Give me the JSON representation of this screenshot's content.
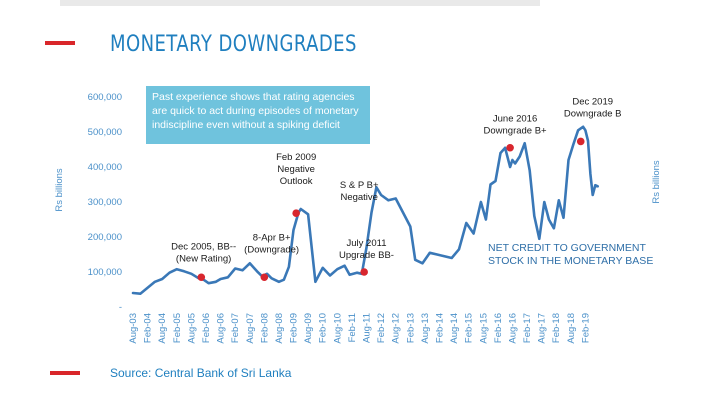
{
  "title": "MONETARY DOWNGRADES",
  "note": [
    "Past experience shows that rating agencies",
    "are quick to act during episodes of monetary",
    "indiscipline even without a spiking deficit"
  ],
  "source": "Source: Central Bank of Sri Lanka",
  "colors": {
    "line": "#3a78b7",
    "marker": "#d8262e",
    "axis_text": "#4a90c9",
    "accent_red": "#d9262a",
    "title": "#1f7fbf",
    "note_bg": "#6fc3dd"
  },
  "chart_data": {
    "type": "line",
    "ylabel_left": "Rs billions",
    "ylabel_right": "Rs billions",
    "ylim": [
      0,
      600000
    ],
    "yticks": [
      "600,000",
      "500,000",
      "400,000",
      "300,000",
      "200,000",
      "100,000",
      "-"
    ],
    "ytick_values": [
      600000,
      500000,
      400000,
      300000,
      200000,
      100000,
      0
    ],
    "xticks": [
      "Aug-03",
      "Feb-04",
      "Aug-04",
      "Feb-05",
      "Aug-05",
      "Feb-06",
      "Aug-06",
      "Feb-07",
      "Aug-07",
      "Feb-08",
      "Aug-08",
      "Feb-09",
      "Aug-09",
      "Feb-10",
      "Aug-10",
      "Feb-11",
      "Aug-11",
      "Feb-12",
      "Aug-12",
      "Feb-13",
      "Aug-13",
      "Feb-14",
      "Aug-14",
      "Feb-15",
      "Aug-15",
      "Feb-16",
      "Aug-16",
      "Feb-17",
      "Aug-17",
      "Feb-18",
      "Aug-18",
      "Feb-19"
    ],
    "series": [
      {
        "name": "NET CREDIT TO GOVERNMENT STOCK IN THE MONETARY BASE",
        "x": [
          2003.58,
          2003.83,
          2004.08,
          2004.33,
          2004.58,
          2004.83,
          2005.08,
          2005.33,
          2005.58,
          2005.83,
          2006.0,
          2006.17,
          2006.42,
          2006.58,
          2006.83,
          2007.08,
          2007.33,
          2007.58,
          2007.83,
          2008.0,
          2008.17,
          2008.33,
          2008.58,
          2008.75,
          2008.92,
          2009.08,
          2009.25,
          2009.33,
          2009.58,
          2009.83,
          2010.08,
          2010.33,
          2010.58,
          2010.83,
          2011.0,
          2011.25,
          2011.42,
          2011.58,
          2011.75,
          2011.92,
          2012.08,
          2012.33,
          2012.58,
          2012.83,
          2013.08,
          2013.25,
          2013.5,
          2013.75,
          2014.0,
          2014.25,
          2014.5,
          2014.75,
          2015.0,
          2015.25,
          2015.5,
          2015.67,
          2015.83,
          2016.0,
          2016.17,
          2016.33,
          2016.5,
          2016.58,
          2016.67,
          2016.83,
          2017.0,
          2017.17,
          2017.33,
          2017.5,
          2017.67,
          2017.83,
          2018.0,
          2018.17,
          2018.33,
          2018.5,
          2018.67,
          2018.83,
          2019.0,
          2019.08,
          2019.17,
          2019.25,
          2019.33,
          2019.42,
          2019.5
        ],
        "values": [
          40000,
          38000,
          55000,
          72000,
          80000,
          98000,
          108000,
          102000,
          95000,
          82000,
          78000,
          68000,
          72000,
          80000,
          85000,
          110000,
          105000,
          125000,
          102000,
          88000,
          95000,
          82000,
          72000,
          78000,
          115000,
          220000,
          270000,
          280000,
          265000,
          72000,
          112000,
          90000,
          108000,
          118000,
          92000,
          98000,
          95000,
          170000,
          270000,
          342000,
          320000,
          305000,
          310000,
          270000,
          230000,
          135000,
          125000,
          155000,
          150000,
          145000,
          140000,
          165000,
          240000,
          210000,
          300000,
          250000,
          350000,
          360000,
          440000,
          455000,
          400000,
          420000,
          410000,
          430000,
          468000,
          390000,
          260000,
          195000,
          300000,
          250000,
          225000,
          305000,
          255000,
          420000,
          465000,
          505000,
          515000,
          505000,
          475000,
          380000,
          320000,
          348000,
          345000
        ]
      }
    ],
    "markers": [
      {
        "x": 2005.92,
        "y": 85000
      },
      {
        "x": 2008.08,
        "y": 85000
      },
      {
        "x": 2009.17,
        "y": 268000
      },
      {
        "x": 2011.5,
        "y": 100000
      },
      {
        "x": 2016.5,
        "y": 455000
      },
      {
        "x": 2018.92,
        "y": 473000
      }
    ],
    "annotations": [
      {
        "lines": [
          "Dec 2005, BB--",
          "(New Rating)"
        ],
        "x": 2006.0,
        "y": 165000
      },
      {
        "lines": [
          "8-Apr B+",
          "(Downgrade)"
        ],
        "x": 2008.33,
        "y": 190000
      },
      {
        "lines": [
          "Feb 2009",
          "Negative",
          "Outlook"
        ],
        "x": 2009.17,
        "y": 420000
      },
      {
        "lines": [
          "S & P B+",
          "Negative"
        ],
        "x": 2011.33,
        "y": 340000
      },
      {
        "lines": [
          "July 2011",
          "Upgrade BB-"
        ],
        "x": 2011.58,
        "y": 175000
      },
      {
        "lines": [
          "June 2016",
          "Downgrade B+"
        ],
        "x": 2016.67,
        "y": 530000
      },
      {
        "lines": [
          "Dec 2019",
          "Downgrade B"
        ],
        "x": 2019.33,
        "y": 578000
      }
    ],
    "series_label_lines": [
      "NET CREDIT TO GOVERNMENT",
      "STOCK IN THE MONETARY BASE"
    ]
  }
}
